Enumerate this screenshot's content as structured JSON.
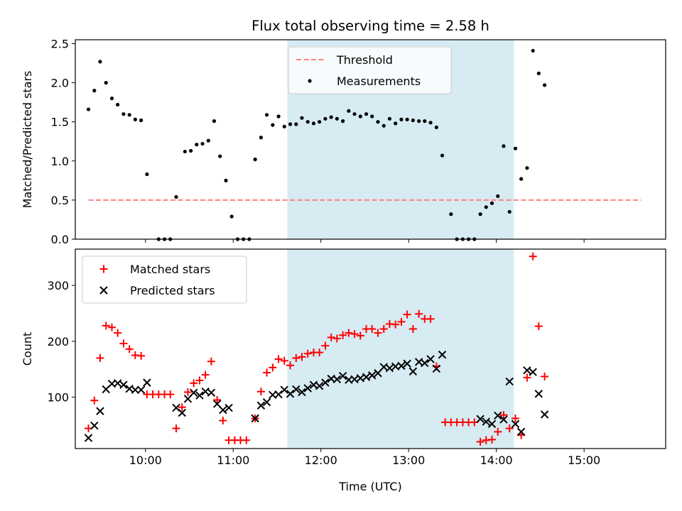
{
  "chart_data": [
    {
      "type": "scatter",
      "title": "Flux total observing time = 2.58 h",
      "ylabel": "Matched/Predicted stars",
      "xlabel": "",
      "xlim": [
        9.2,
        15.93
      ],
      "ylim": [
        0,
        2.55
      ],
      "x_ticks": [
        "10:00",
        "11:00",
        "12:00",
        "13:00",
        "14:00",
        "15:00"
      ],
      "y_ticks": [
        "0.0",
        "0.5",
        "1.0",
        "1.5",
        "2.0",
        "2.5"
      ],
      "x_tick_values": [
        10,
        11,
        12,
        13,
        14,
        15
      ],
      "y_tick_values": [
        0,
        0.5,
        1.0,
        1.5,
        2.0,
        2.5
      ],
      "shaded_interval": [
        11.617,
        14.2
      ],
      "shaded_color": "#add8e6",
      "legend_position": "upper center",
      "series": [
        {
          "name": "Threshold",
          "kind": "dashed-line",
          "color": "#ff7f7f",
          "points": [
            [
              9.35,
              0.5
            ],
            [
              15.65,
              0.5
            ]
          ]
        },
        {
          "name": "Measurements",
          "kind": "dots",
          "color": "#000000",
          "points": [
            [
              9.35,
              1.66
            ],
            [
              9.417,
              1.9
            ],
            [
              9.483,
              2.27
            ],
            [
              9.55,
              2.0
            ],
            [
              9.617,
              1.8
            ],
            [
              9.683,
              1.72
            ],
            [
              9.75,
              1.6
            ],
            [
              9.817,
              1.59
            ],
            [
              9.883,
              1.53
            ],
            [
              9.95,
              1.52
            ],
            [
              10.017,
              0.83
            ],
            [
              10.15,
              0.0
            ],
            [
              10.217,
              0.0
            ],
            [
              10.283,
              0.0
            ],
            [
              10.35,
              0.54
            ],
            [
              10.45,
              1.12
            ],
            [
              10.517,
              1.13
            ],
            [
              10.583,
              1.21
            ],
            [
              10.65,
              1.22
            ],
            [
              10.717,
              1.26
            ],
            [
              10.783,
              1.51
            ],
            [
              10.85,
              1.06
            ],
            [
              10.917,
              0.75
            ],
            [
              10.983,
              0.29
            ],
            [
              11.05,
              0.0
            ],
            [
              11.117,
              0.0
            ],
            [
              11.183,
              0.0
            ],
            [
              11.25,
              1.02
            ],
            [
              11.317,
              1.3
            ],
            [
              11.383,
              1.59
            ],
            [
              11.45,
              1.46
            ],
            [
              11.517,
              1.57
            ],
            [
              11.583,
              1.44
            ],
            [
              11.65,
              1.47
            ],
            [
              11.717,
              1.47
            ],
            [
              11.783,
              1.55
            ],
            [
              11.85,
              1.5
            ],
            [
              11.917,
              1.48
            ],
            [
              11.983,
              1.5
            ],
            [
              12.05,
              1.54
            ],
            [
              12.117,
              1.56
            ],
            [
              12.183,
              1.54
            ],
            [
              12.25,
              1.51
            ],
            [
              12.317,
              1.64
            ],
            [
              12.383,
              1.6
            ],
            [
              12.45,
              1.57
            ],
            [
              12.517,
              1.6
            ],
            [
              12.583,
              1.57
            ],
            [
              12.65,
              1.5
            ],
            [
              12.717,
              1.45
            ],
            [
              12.783,
              1.54
            ],
            [
              12.85,
              1.48
            ],
            [
              12.917,
              1.53
            ],
            [
              12.983,
              1.53
            ],
            [
              13.05,
              1.52
            ],
            [
              13.117,
              1.51
            ],
            [
              13.183,
              1.51
            ],
            [
              13.25,
              1.49
            ],
            [
              13.317,
              1.43
            ],
            [
              13.383,
              1.07
            ],
            [
              13.483,
              0.32
            ],
            [
              13.55,
              0.0
            ],
            [
              13.617,
              0.0
            ],
            [
              13.683,
              0.0
            ],
            [
              13.75,
              0.0
            ],
            [
              13.817,
              0.32
            ],
            [
              13.883,
              0.41
            ],
            [
              13.95,
              0.46
            ],
            [
              14.017,
              0.55
            ],
            [
              14.083,
              1.19
            ],
            [
              14.15,
              0.35
            ],
            [
              14.217,
              1.16
            ],
            [
              14.283,
              0.77
            ],
            [
              14.35,
              0.91
            ],
            [
              14.417,
              2.41
            ],
            [
              14.483,
              2.12
            ],
            [
              14.55,
              1.97
            ]
          ]
        }
      ]
    },
    {
      "type": "scatter",
      "title": "",
      "ylabel": "Count",
      "xlabel": "Time (UTC)",
      "xlim": [
        9.2,
        15.93
      ],
      "ylim": [
        8,
        365
      ],
      "x_ticks": [
        "10:00",
        "11:00",
        "12:00",
        "13:00",
        "14:00",
        "15:00"
      ],
      "y_ticks": [
        "100",
        "200",
        "300"
      ],
      "x_tick_values": [
        10,
        11,
        12,
        13,
        14,
        15
      ],
      "y_tick_values": [
        100,
        200,
        300
      ],
      "shaded_interval": [
        11.617,
        14.2
      ],
      "shaded_color": "#add8e6",
      "legend_position": "upper left",
      "series": [
        {
          "name": "Matched stars",
          "kind": "plus",
          "color": "#ff0000",
          "points": [
            [
              9.35,
              44
            ],
            [
              9.417,
              94
            ],
            [
              9.483,
              170
            ],
            [
              9.55,
              228
            ],
            [
              9.617,
              225
            ],
            [
              9.683,
              215
            ],
            [
              9.75,
              196
            ],
            [
              9.817,
              186
            ],
            [
              9.883,
              175
            ],
            [
              9.95,
              174
            ],
            [
              10.017,
              105
            ],
            [
              10.083,
              105
            ],
            [
              10.15,
              105
            ],
            [
              10.217,
              105
            ],
            [
              10.283,
              105
            ],
            [
              10.35,
              44
            ],
            [
              10.417,
              82
            ],
            [
              10.483,
              109
            ],
            [
              10.55,
              125
            ],
            [
              10.617,
              130
            ],
            [
              10.683,
              140
            ],
            [
              10.75,
              164
            ],
            [
              10.817,
              95
            ],
            [
              10.883,
              58
            ],
            [
              10.95,
              23
            ],
            [
              11.017,
              23
            ],
            [
              11.083,
              23
            ],
            [
              11.15,
              23
            ],
            [
              11.25,
              62
            ],
            [
              11.317,
              110
            ],
            [
              11.383,
              144
            ],
            [
              11.45,
              153
            ],
            [
              11.517,
              168
            ],
            [
              11.583,
              165
            ],
            [
              11.65,
              157
            ],
            [
              11.717,
              170
            ],
            [
              11.783,
              172
            ],
            [
              11.85,
              178
            ],
            [
              11.917,
              180
            ],
            [
              11.983,
              180
            ],
            [
              12.05,
              192
            ],
            [
              12.117,
              207
            ],
            [
              12.183,
              205
            ],
            [
              12.25,
              211
            ],
            [
              12.317,
              215
            ],
            [
              12.383,
              213
            ],
            [
              12.45,
              210
            ],
            [
              12.517,
              222
            ],
            [
              12.583,
              222
            ],
            [
              12.65,
              215
            ],
            [
              12.717,
              222
            ],
            [
              12.783,
              231
            ],
            [
              12.85,
              230
            ],
            [
              12.917,
              235
            ],
            [
              12.983,
              248
            ],
            [
              13.05,
              222
            ],
            [
              13.117,
              249
            ],
            [
              13.183,
              240
            ],
            [
              13.25,
              240
            ],
            [
              13.317,
              155
            ],
            [
              13.417,
              55
            ],
            [
              13.483,
              55
            ],
            [
              13.55,
              55
            ],
            [
              13.617,
              55
            ],
            [
              13.683,
              55
            ],
            [
              13.75,
              55
            ],
            [
              13.817,
              20
            ],
            [
              13.883,
              23
            ],
            [
              13.95,
              24
            ],
            [
              14.017,
              38
            ],
            [
              14.083,
              68
            ],
            [
              14.15,
              44
            ],
            [
              14.217,
              62
            ],
            [
              14.283,
              32
            ],
            [
              14.35,
              135
            ],
            [
              14.417,
              352
            ],
            [
              14.483,
              227
            ],
            [
              14.55,
              137
            ]
          ]
        },
        {
          "name": "Predicted stars",
          "kind": "cross",
          "color": "#000000",
          "points": [
            [
              9.35,
              27
            ],
            [
              9.417,
              49
            ],
            [
              9.483,
              75
            ],
            [
              9.55,
              114
            ],
            [
              9.617,
              124
            ],
            [
              9.683,
              125
            ],
            [
              9.75,
              122
            ],
            [
              9.817,
              115
            ],
            [
              9.883,
              113
            ],
            [
              9.95,
              113
            ],
            [
              10.017,
              126
            ],
            [
              10.35,
              81
            ],
            [
              10.417,
              72
            ],
            [
              10.483,
              97
            ],
            [
              10.55,
              108
            ],
            [
              10.617,
              103
            ],
            [
              10.683,
              110
            ],
            [
              10.75,
              108
            ],
            [
              10.817,
              88
            ],
            [
              10.883,
              77
            ],
            [
              10.95,
              81
            ],
            [
              11.25,
              62
            ],
            [
              11.317,
              85
            ],
            [
              11.383,
              91
            ],
            [
              11.45,
              104
            ],
            [
              11.517,
              105
            ],
            [
              11.583,
              113
            ],
            [
              11.65,
              106
            ],
            [
              11.717,
              114
            ],
            [
              11.783,
              109
            ],
            [
              11.85,
              116
            ],
            [
              11.917,
              122
            ],
            [
              11.983,
              120
            ],
            [
              12.05,
              126
            ],
            [
              12.117,
              133
            ],
            [
              12.183,
              132
            ],
            [
              12.25,
              138
            ],
            [
              12.317,
              131
            ],
            [
              12.383,
              132
            ],
            [
              12.45,
              134
            ],
            [
              12.517,
              136
            ],
            [
              12.583,
              139
            ],
            [
              12.65,
              143
            ],
            [
              12.717,
              154
            ],
            [
              12.783,
              152
            ],
            [
              12.85,
              155
            ],
            [
              12.917,
              156
            ],
            [
              12.983,
              160
            ],
            [
              13.05,
              146
            ],
            [
              13.117,
              163
            ],
            [
              13.183,
              161
            ],
            [
              13.25,
              168
            ],
            [
              13.317,
              151
            ],
            [
              13.383,
              176
            ],
            [
              13.817,
              61
            ],
            [
              13.883,
              56
            ],
            [
              13.95,
              52
            ],
            [
              14.017,
              67
            ],
            [
              14.083,
              60
            ],
            [
              14.15,
              128
            ],
            [
              14.217,
              52
            ],
            [
              14.283,
              38
            ],
            [
              14.35,
              148
            ],
            [
              14.417,
              145
            ],
            [
              14.483,
              106
            ],
            [
              14.55,
              69
            ]
          ]
        }
      ]
    }
  ]
}
